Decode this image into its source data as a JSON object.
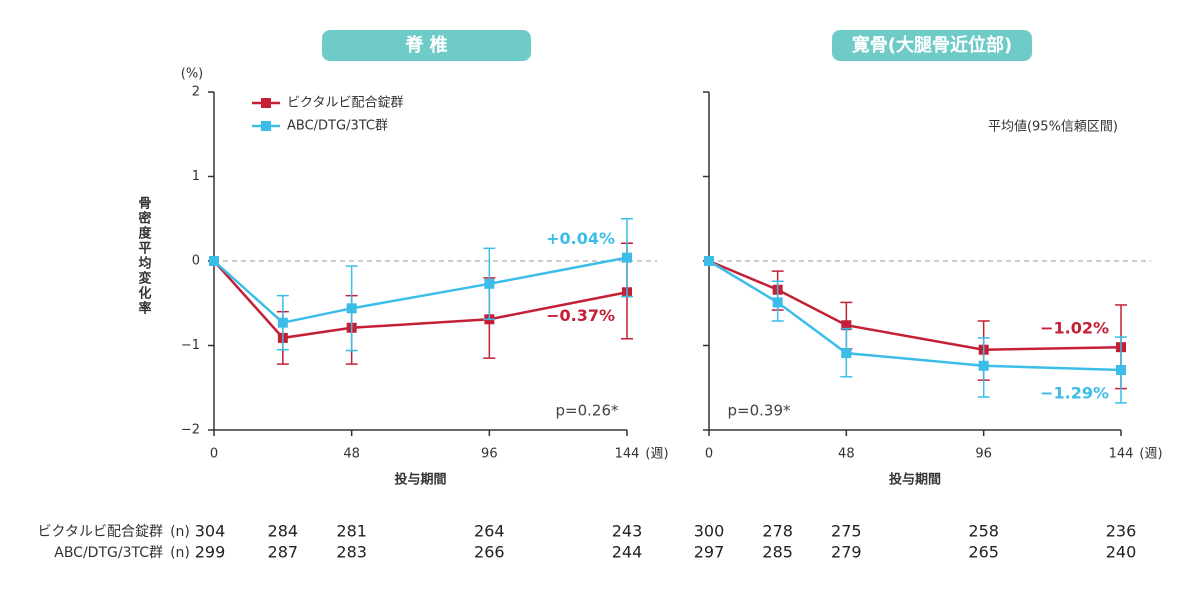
{
  "chart_data": [
    {
      "type": "line",
      "title": "脊 椎",
      "ylabel": "骨密度平均変化率",
      "yunit": "(%)",
      "xlabel": "投与期間",
      "xunit": "(週)",
      "x": [
        0,
        24,
        48,
        96,
        144
      ],
      "xlim": [
        0,
        144
      ],
      "xticks": [
        0,
        48,
        96,
        144
      ],
      "ylim": [
        -2,
        2
      ],
      "yticks": [
        {
          "value": -2,
          "label": "−2"
        },
        {
          "value": -1,
          "label": "−1"
        },
        0,
        1,
        2
      ],
      "ytick_labels": true,
      "reference_line": 0,
      "legend": true,
      "annotation": "p=0.26*",
      "series": [
        {
          "name": "ビクタルビ配合錠群",
          "color": "#c41f35",
          "values": [
            0,
            -0.91,
            -0.79,
            -0.69,
            -0.37
          ],
          "ci_low": [
            null,
            -1.22,
            -1.22,
            -1.15,
            -0.92
          ],
          "ci_high": [
            null,
            -0.6,
            -0.41,
            -0.2,
            0.21
          ],
          "value_labels": [
            null,
            null,
            null,
            null,
            "−0.37%"
          ],
          "n": [
            304,
            284,
            281,
            264,
            243
          ]
        },
        {
          "name": "ABC/DTG/3TC群",
          "color": "#3bbde8",
          "values": [
            0,
            -0.73,
            -0.56,
            -0.27,
            0.04
          ],
          "ci_low": [
            null,
            -1.05,
            -1.06,
            -0.69,
            -0.42
          ],
          "ci_high": [
            null,
            -0.41,
            -0.06,
            0.15,
            0.5
          ],
          "value_labels": [
            null,
            null,
            null,
            null,
            "+0.04%"
          ],
          "n": [
            299,
            287,
            283,
            266,
            244
          ]
        }
      ]
    },
    {
      "type": "line",
      "title": "寛骨(大腿骨近位部)",
      "xlabel": "投与期間",
      "xunit": "(週)",
      "x": [
        0,
        24,
        48,
        96,
        144
      ],
      "xlim": [
        0,
        144
      ],
      "xticks": [
        0,
        48,
        96,
        144
      ],
      "ylim": [
        -2,
        2
      ],
      "yticks": [
        -2,
        -1,
        0,
        1,
        2
      ],
      "ytick_labels": false,
      "reference_line": 0,
      "legend": false,
      "annotation": "p=0.39*",
      "note": "平均値(95%信頼区間)",
      "series": [
        {
          "name": "ビクタルビ配合錠群",
          "color": "#c41f35",
          "values": [
            0,
            -0.34,
            -0.76,
            -1.05,
            -1.02
          ],
          "ci_low": [
            null,
            -0.58,
            -1.04,
            -1.41,
            -1.51
          ],
          "ci_high": [
            null,
            -0.12,
            -0.49,
            -0.71,
            -0.52
          ],
          "value_labels": [
            null,
            null,
            null,
            null,
            "−1.02%"
          ],
          "n": [
            300,
            278,
            275,
            258,
            236
          ]
        },
        {
          "name": "ABC/DTG/3TC群",
          "color": "#3bbde8",
          "values": [
            0,
            -0.49,
            -1.09,
            -1.24,
            -1.29
          ],
          "ci_low": [
            null,
            -0.71,
            -1.37,
            -1.61,
            -1.68
          ],
          "ci_high": [
            null,
            -0.24,
            -0.8,
            -0.91,
            -0.9
          ],
          "value_labels": [
            null,
            null,
            null,
            null,
            "−1.29%"
          ],
          "n": [
            297,
            285,
            279,
            265,
            240
          ]
        }
      ]
    }
  ],
  "n_table": {
    "unit": "(n)",
    "rows": [
      "ビクタルビ配合錠群",
      "ABC/DTG/3TC群"
    ]
  }
}
